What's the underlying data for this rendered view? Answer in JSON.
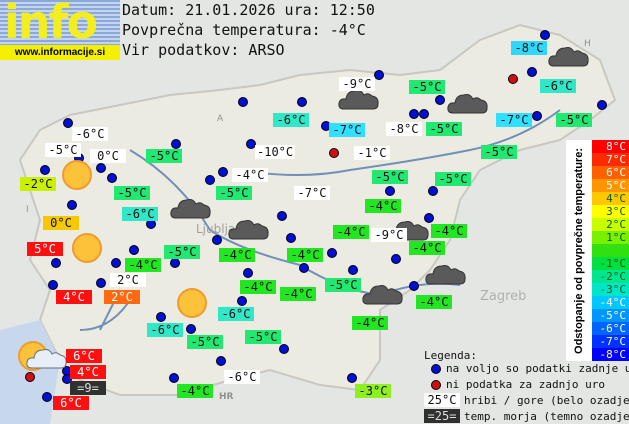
{
  "header": {
    "logo_text": "info",
    "logo_url": "www.informacije.si",
    "date_line": "Datum: 21.01.2026 ura: 12:50",
    "avg_line": "Povprečna temperatura: -4°C",
    "source_line": "Vir podatkov: ARSO"
  },
  "map_text": {
    "city_ljubljana": "Ljubljana",
    "city_zagreb": "Zagreb",
    "country_hr": "HR",
    "country_a": "A",
    "country_h": "H",
    "country_i": "I"
  },
  "stations": [
    {
      "t": "-6°C",
      "bg": "#ffffff"
    },
    {
      "t": "-5°C",
      "bg": "#ffffff"
    },
    {
      "t": "0°C",
      "bg": "#ffffff"
    },
    {
      "t": "-2°C",
      "bg": "#c8f000"
    },
    {
      "t": "-5°C",
      "bg": "#20e870"
    },
    {
      "t": "-10°C",
      "bg": "#ffffff"
    },
    {
      "t": "-4°C",
      "bg": "#ffffff"
    },
    {
      "t": "-5°C",
      "bg": "#20e870"
    },
    {
      "t": "-5°C",
      "bg": "#20e870"
    },
    {
      "t": "-6°C",
      "bg": "#30e8c8"
    },
    {
      "t": "0°C",
      "bg": "#f5c800"
    },
    {
      "t": "5°C",
      "bg": "#ff1010"
    },
    {
      "t": "-4°C",
      "bg": "#22e622"
    },
    {
      "t": "-5°C",
      "bg": "#20e870"
    },
    {
      "t": "-4°C",
      "bg": "#22e622"
    },
    {
      "t": "-7°C",
      "bg": "#ffffff"
    },
    {
      "t": "-4°C",
      "bg": "#22e622"
    },
    {
      "t": "2°C",
      "bg": "#ffffff"
    },
    {
      "t": "4°C",
      "bg": "#ff1010"
    },
    {
      "t": "2°C",
      "bg": "#ff6a10"
    },
    {
      "t": "-4°C",
      "bg": "#22e622"
    },
    {
      "t": "-4°C",
      "bg": "#22e622"
    },
    {
      "t": "-5°C",
      "bg": "#20e870"
    },
    {
      "t": "-5°C",
      "bg": "#20e870"
    },
    {
      "t": "-4°C",
      "bg": "#22e622"
    },
    {
      "t": "-4°C",
      "bg": "#22e622"
    },
    {
      "t": "-9°C",
      "bg": "#ffffff"
    },
    {
      "t": "-4°C",
      "bg": "#22e622"
    },
    {
      "t": "-4°C",
      "bg": "#22e622"
    },
    {
      "t": "-5°C",
      "bg": "#20e870"
    },
    {
      "t": "-4°C",
      "bg": "#22e622"
    },
    {
      "t": "-4°C",
      "bg": "#22e622"
    },
    {
      "t": "-6°C",
      "bg": "#30e8c8"
    },
    {
      "t": "-6°C",
      "bg": "#30e8c8"
    },
    {
      "t": "-5°C",
      "bg": "#20e870"
    },
    {
      "t": "-5°C",
      "bg": "#20e870"
    },
    {
      "t": "-6°C",
      "bg": "#ffffff"
    },
    {
      "t": "-4°C",
      "bg": "#22e622"
    },
    {
      "t": "-3°C",
      "bg": "#8ef020"
    },
    {
      "t": "6°C",
      "bg": "#ff1010"
    },
    {
      "t": "4°C",
      "bg": "#ff1010"
    },
    {
      "t": "=9=",
      "bg": "#303030"
    },
    {
      "t": "6°C",
      "bg": "#ff1010"
    },
    {
      "t": "-8°C",
      "bg": "#30d8f8"
    },
    {
      "t": "-9°C",
      "bg": "#ffffff"
    },
    {
      "t": "-5°C",
      "bg": "#20e870"
    },
    {
      "t": "-6°C",
      "bg": "#30e8c8"
    },
    {
      "t": "-6°C",
      "bg": "#30e8c8"
    },
    {
      "t": "-7°C",
      "bg": "#30e0ff"
    },
    {
      "t": "-8°C",
      "bg": "#ffffff"
    },
    {
      "t": "-5°C",
      "bg": "#20e870"
    },
    {
      "t": "-7°C",
      "bg": "#30e0ff"
    },
    {
      "t": "-5°C",
      "bg": "#20e870"
    },
    {
      "t": "-5°C",
      "bg": "#20e870"
    },
    {
      "t": "-1°C",
      "bg": "#ffffff"
    }
  ],
  "scale": {
    "title": "Odstopanje od povprečne temperature:",
    "steps": [
      {
        "t": "8°C",
        "bg": "#ff0000"
      },
      {
        "t": "7°C",
        "bg": "#ff2a00"
      },
      {
        "t": "6°C",
        "bg": "#ff6000"
      },
      {
        "t": "5°C",
        "bg": "#ff9600"
      },
      {
        "t": "4°C",
        "bg": "#ffc800"
      },
      {
        "t": "3°C",
        "bg": "#ffff00"
      },
      {
        "t": "2°C",
        "bg": "#c8ff00"
      },
      {
        "t": "1°C",
        "bg": "#78f000"
      },
      {
        "t": "",
        "bg": "#30e010"
      },
      {
        "t": "-1°C",
        "bg": "#00e040"
      },
      {
        "t": "-2°C",
        "bg": "#00e690"
      },
      {
        "t": "-3°C",
        "bg": "#00e6c8"
      },
      {
        "t": "-4°C",
        "bg": "#00c8ff"
      },
      {
        "t": "-5°C",
        "bg": "#0096ff"
      },
      {
        "t": "-6°C",
        "bg": "#0064ff"
      },
      {
        "t": "-7°C",
        "bg": "#0032ff"
      },
      {
        "t": "-8°C",
        "bg": "#0000ff"
      }
    ]
  },
  "legend": {
    "title": "Legenda:",
    "available": "na voljo so podatki zadnje ure",
    "unavailable": "ni podatka za zadnjo uro",
    "mountain_sample": "25°C",
    "mountain_text": "hribi / gore (belo ozadje)",
    "sea_sample": "=25=",
    "sea_text": "temp. morja (temno ozadje)"
  },
  "colors": {
    "dot_available": "#0010d0",
    "dot_unavailable": "#d01010"
  }
}
